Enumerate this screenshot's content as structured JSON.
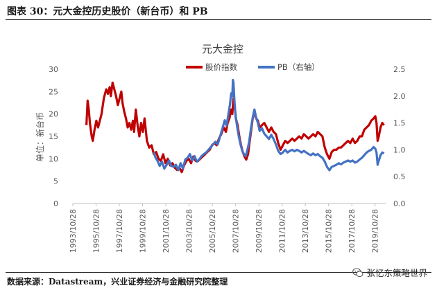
{
  "figure_title": "图表 30：元大金控历史股价（新台币）和 PB",
  "source_note": "数据来源：Datastream，兴业证券经济与金融研究院整理",
  "watermark": "张忆东策略世界",
  "watermark_icon": "wechat-icon",
  "chart_data": {
    "type": "line",
    "title": "元大金控",
    "ylabel": "单位：新台币",
    "y2label": "",
    "ylim": [
      0,
      30
    ],
    "y2lim": [
      0,
      2.5
    ],
    "yticks": [
      "0",
      "5",
      "10",
      "15",
      "20",
      "25",
      "30"
    ],
    "y2ticks": [
      "0.0",
      "0.5",
      "1.0",
      "1.5",
      "2.0",
      "2.5"
    ],
    "xlim": [
      1993.83,
      2020.8
    ],
    "xticks": [
      {
        "x": 1993.83,
        "label": "1993/10/28"
      },
      {
        "x": 1995.83,
        "label": "1995/10/28"
      },
      {
        "x": 1997.83,
        "label": "1997/10/28"
      },
      {
        "x": 1999.83,
        "label": "1999/10/28"
      },
      {
        "x": 2001.83,
        "label": "2001/10/28"
      },
      {
        "x": 2003.83,
        "label": "2003/10/28"
      },
      {
        "x": 2005.83,
        "label": "2005/10/28"
      },
      {
        "x": 2007.83,
        "label": "2007/10/28"
      },
      {
        "x": 2009.83,
        "label": "2009/10/28"
      },
      {
        "x": 2011.83,
        "label": "2011/10/28"
      },
      {
        "x": 2013.83,
        "label": "2013/10/28"
      },
      {
        "x": 2015.83,
        "label": "2015/10/28"
      },
      {
        "x": 2017.83,
        "label": "2017/10/28"
      },
      {
        "x": 2019.83,
        "label": "2019/10/28"
      }
    ],
    "legend_position": "top-right",
    "grid": false,
    "series": [
      {
        "name": "股价指数",
        "axis": "left",
        "color": "#C00000",
        "points": [
          [
            1995.0,
            17.5
          ],
          [
            1995.1,
            23.0
          ],
          [
            1995.2,
            21.0
          ],
          [
            1995.3,
            18.0
          ],
          [
            1995.45,
            15.0
          ],
          [
            1995.55,
            14.0
          ],
          [
            1995.7,
            16.5
          ],
          [
            1995.85,
            18.5
          ],
          [
            1996.0,
            17.0
          ],
          [
            1996.15,
            18.5
          ],
          [
            1996.3,
            20.0
          ],
          [
            1996.5,
            23.5
          ],
          [
            1996.7,
            25.5
          ],
          [
            1996.85,
            24.5
          ],
          [
            1997.0,
            26.0
          ],
          [
            1997.1,
            24.0
          ],
          [
            1997.25,
            27.0
          ],
          [
            1997.4,
            25.5
          ],
          [
            1997.55,
            24.0
          ],
          [
            1997.7,
            22.0
          ],
          [
            1997.85,
            23.5
          ],
          [
            1998.0,
            25.0
          ],
          [
            1998.1,
            22.5
          ],
          [
            1998.25,
            20.5
          ],
          [
            1998.4,
            19.0
          ],
          [
            1998.55,
            17.0
          ],
          [
            1998.7,
            18.0
          ],
          [
            1998.85,
            16.5
          ],
          [
            1999.0,
            18.5
          ],
          [
            1999.1,
            16.0
          ],
          [
            1999.25,
            21.0
          ],
          [
            1999.4,
            17.5
          ],
          [
            1999.55,
            15.0
          ],
          [
            1999.7,
            18.0
          ],
          [
            1999.85,
            16.0
          ],
          [
            2000.0,
            19.0
          ],
          [
            2000.2,
            14.0
          ],
          [
            2000.4,
            12.5
          ],
          [
            2000.6,
            13.0
          ],
          [
            2000.8,
            11.0
          ],
          [
            2001.0,
            11.5
          ],
          [
            2001.2,
            10.0
          ],
          [
            2001.4,
            9.5
          ],
          [
            2001.6,
            11.0
          ],
          [
            2001.8,
            9.0
          ],
          [
            2002.0,
            10.0
          ],
          [
            2002.2,
            8.5
          ],
          [
            2002.4,
            9.0
          ],
          [
            2002.6,
            8.0
          ],
          [
            2002.8,
            7.5
          ],
          [
            2003.0,
            8.0
          ],
          [
            2003.2,
            7.0
          ],
          [
            2003.4,
            8.5
          ],
          [
            2003.6,
            9.5
          ],
          [
            2003.8,
            10.0
          ],
          [
            2004.0,
            9.0
          ],
          [
            2004.2,
            10.5
          ],
          [
            2004.4,
            9.5
          ],
          [
            2004.6,
            9.5
          ],
          [
            2004.8,
            10.0
          ],
          [
            2005.0,
            10.5
          ],
          [
            2005.2,
            11.0
          ],
          [
            2005.4,
            11.5
          ],
          [
            2005.6,
            12.0
          ],
          [
            2005.8,
            13.0
          ],
          [
            2006.0,
            13.5
          ],
          [
            2006.2,
            13.0
          ],
          [
            2006.4,
            14.5
          ],
          [
            2006.6,
            15.5
          ],
          [
            2006.8,
            17.0
          ],
          [
            2007.0,
            16.0
          ],
          [
            2007.15,
            18.0
          ],
          [
            2007.3,
            19.0
          ],
          [
            2007.45,
            21.0
          ],
          [
            2007.55,
            20.0
          ],
          [
            2007.65,
            23.5
          ],
          [
            2007.75,
            22.0
          ],
          [
            2007.85,
            19.0
          ],
          [
            2008.0,
            17.5
          ],
          [
            2008.15,
            15.0
          ],
          [
            2008.3,
            13.0
          ],
          [
            2008.45,
            11.5
          ],
          [
            2008.6,
            10.5
          ],
          [
            2008.75,
            9.8
          ],
          [
            2008.9,
            11.0
          ],
          [
            2009.0,
            13.0
          ],
          [
            2009.15,
            16.0
          ],
          [
            2009.3,
            19.0
          ],
          [
            2009.45,
            20.5
          ],
          [
            2009.6,
            19.0
          ],
          [
            2009.75,
            18.5
          ],
          [
            2009.9,
            17.0
          ],
          [
            2010.1,
            17.5
          ],
          [
            2010.3,
            18.0
          ],
          [
            2010.5,
            17.0
          ],
          [
            2010.7,
            16.0
          ],
          [
            2010.9,
            17.0
          ],
          [
            2011.1,
            16.0
          ],
          [
            2011.3,
            15.5
          ],
          [
            2011.5,
            13.5
          ],
          [
            2011.7,
            12.0
          ],
          [
            2011.9,
            13.0
          ],
          [
            2012.1,
            14.0
          ],
          [
            2012.3,
            13.5
          ],
          [
            2012.5,
            14.0
          ],
          [
            2012.7,
            14.5
          ],
          [
            2012.9,
            14.0
          ],
          [
            2013.1,
            14.5
          ],
          [
            2013.3,
            15.0
          ],
          [
            2013.5,
            14.5
          ],
          [
            2013.7,
            15.5
          ],
          [
            2013.9,
            15.0
          ],
          [
            2014.1,
            14.5
          ],
          [
            2014.3,
            15.0
          ],
          [
            2014.5,
            15.5
          ],
          [
            2014.7,
            15.0
          ],
          [
            2014.9,
            16.0
          ],
          [
            2015.1,
            15.5
          ],
          [
            2015.3,
            15.0
          ],
          [
            2015.5,
            12.5
          ],
          [
            2015.7,
            11.0
          ],
          [
            2015.9,
            10.0
          ],
          [
            2016.1,
            11.5
          ],
          [
            2016.3,
            12.0
          ],
          [
            2016.5,
            12.0
          ],
          [
            2016.7,
            12.5
          ],
          [
            2016.9,
            12.5
          ],
          [
            2017.1,
            13.0
          ],
          [
            2017.3,
            13.5
          ],
          [
            2017.5,
            14.0
          ],
          [
            2017.7,
            13.5
          ],
          [
            2017.9,
            14.5
          ],
          [
            2018.1,
            13.5
          ],
          [
            2018.3,
            14.0
          ],
          [
            2018.5,
            15.0
          ],
          [
            2018.7,
            15.0
          ],
          [
            2018.9,
            16.5
          ],
          [
            2019.1,
            17.0
          ],
          [
            2019.3,
            17.5
          ],
          [
            2019.5,
            18.5
          ],
          [
            2019.7,
            19.0
          ],
          [
            2019.85,
            19.5
          ],
          [
            2019.95,
            18.0
          ],
          [
            2020.05,
            14.0
          ],
          [
            2020.15,
            15.0
          ],
          [
            2020.3,
            17.0
          ],
          [
            2020.45,
            18.0
          ],
          [
            2020.6,
            17.5
          ]
        ]
      },
      {
        "name": "PB（右轴）",
        "axis": "right",
        "color": "#4472C4",
        "points": [
          [
            2000.8,
            0.95
          ],
          [
            2000.95,
            0.85
          ],
          [
            2001.1,
            0.8
          ],
          [
            2001.3,
            0.7
          ],
          [
            2001.5,
            0.78
          ],
          [
            2001.7,
            0.65
          ],
          [
            2001.9,
            0.72
          ],
          [
            2002.1,
            0.8
          ],
          [
            2002.3,
            0.7
          ],
          [
            2002.5,
            0.68
          ],
          [
            2002.7,
            0.72
          ],
          [
            2002.9,
            0.62
          ],
          [
            2003.1,
            0.75
          ],
          [
            2003.3,
            0.65
          ],
          [
            2003.5,
            0.82
          ],
          [
            2003.7,
            0.85
          ],
          [
            2003.9,
            0.92
          ],
          [
            2004.1,
            0.8
          ],
          [
            2004.3,
            0.88
          ],
          [
            2004.5,
            0.78
          ],
          [
            2004.7,
            0.82
          ],
          [
            2004.9,
            0.88
          ],
          [
            2005.1,
            0.92
          ],
          [
            2005.3,
            0.95
          ],
          [
            2005.5,
            1.0
          ],
          [
            2005.7,
            1.05
          ],
          [
            2005.9,
            1.1
          ],
          [
            2006.1,
            1.15
          ],
          [
            2006.3,
            1.1
          ],
          [
            2006.5,
            1.25
          ],
          [
            2006.7,
            1.4
          ],
          [
            2006.9,
            1.55
          ],
          [
            2007.05,
            1.45
          ],
          [
            2007.2,
            1.65
          ],
          [
            2007.35,
            1.85
          ],
          [
            2007.45,
            2.05
          ],
          [
            2007.55,
            2.0
          ],
          [
            2007.6,
            2.3
          ],
          [
            2007.65,
            2.25
          ],
          [
            2007.72,
            1.95
          ],
          [
            2007.8,
            1.7
          ],
          [
            2007.95,
            1.45
          ],
          [
            2008.1,
            1.25
          ],
          [
            2008.25,
            1.1
          ],
          [
            2008.4,
            0.98
          ],
          [
            2008.55,
            0.92
          ],
          [
            2008.7,
            0.88
          ],
          [
            2008.85,
            1.0
          ],
          [
            2009.0,
            1.15
          ],
          [
            2009.15,
            1.4
          ],
          [
            2009.3,
            1.6
          ],
          [
            2009.45,
            1.75
          ],
          [
            2009.6,
            1.6
          ],
          [
            2009.75,
            1.5
          ],
          [
            2009.9,
            1.35
          ],
          [
            2010.1,
            1.4
          ],
          [
            2010.3,
            1.3
          ],
          [
            2010.5,
            1.25
          ],
          [
            2010.7,
            1.2
          ],
          [
            2010.9,
            1.28
          ],
          [
            2011.1,
            1.2
          ],
          [
            2011.3,
            1.1
          ],
          [
            2011.5,
            0.98
          ],
          [
            2011.7,
            0.92
          ],
          [
            2011.9,
            0.95
          ],
          [
            2012.1,
            1.0
          ],
          [
            2012.3,
            0.95
          ],
          [
            2012.5,
            0.98
          ],
          [
            2012.7,
            1.0
          ],
          [
            2012.9,
            0.97
          ],
          [
            2013.1,
            1.0
          ],
          [
            2013.3,
            0.98
          ],
          [
            2013.5,
            0.95
          ],
          [
            2013.7,
            0.98
          ],
          [
            2013.9,
            0.95
          ],
          [
            2014.1,
            0.92
          ],
          [
            2014.3,
            0.9
          ],
          [
            2014.5,
            0.93
          ],
          [
            2014.7,
            0.9
          ],
          [
            2014.9,
            0.92
          ],
          [
            2015.1,
            0.88
          ],
          [
            2015.3,
            0.85
          ],
          [
            2015.5,
            0.78
          ],
          [
            2015.7,
            0.68
          ],
          [
            2015.9,
            0.62
          ],
          [
            2016.1,
            0.68
          ],
          [
            2016.3,
            0.7
          ],
          [
            2016.5,
            0.72
          ],
          [
            2016.7,
            0.75
          ],
          [
            2016.9,
            0.73
          ],
          [
            2017.1,
            0.76
          ],
          [
            2017.3,
            0.78
          ],
          [
            2017.5,
            0.8
          ],
          [
            2017.7,
            0.78
          ],
          [
            2017.9,
            0.8
          ],
          [
            2018.1,
            0.76
          ],
          [
            2018.3,
            0.78
          ],
          [
            2018.5,
            0.82
          ],
          [
            2018.7,
            0.85
          ],
          [
            2018.9,
            0.9
          ],
          [
            2019.1,
            0.95
          ],
          [
            2019.3,
            0.98
          ],
          [
            2019.5,
            1.0
          ],
          [
            2019.7,
            1.05
          ],
          [
            2019.85,
            1.02
          ],
          [
            2019.95,
            0.95
          ],
          [
            2020.05,
            0.72
          ],
          [
            2020.15,
            0.8
          ],
          [
            2020.3,
            0.9
          ],
          [
            2020.45,
            0.95
          ],
          [
            2020.6,
            0.93
          ]
        ]
      }
    ]
  }
}
